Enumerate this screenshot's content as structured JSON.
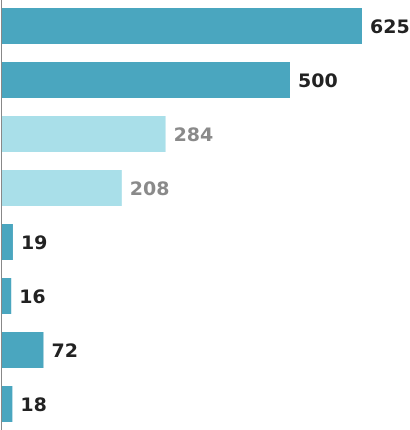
{
  "chart_data": {
    "type": "bar",
    "orientation": "horizontal",
    "title": "",
    "xlabel": "",
    "ylabel": "",
    "xlim": [
      0,
      625
    ],
    "grid": false,
    "legend": "none",
    "bars": [
      {
        "value": 625,
        "label": "625",
        "color": "#4aa6bf",
        "label_color": "#222222"
      },
      {
        "value": 500,
        "label": "500",
        "color": "#4aa6bf",
        "label_color": "#222222"
      },
      {
        "value": 284,
        "label": "284",
        "color": "#a9dfe9",
        "label_color": "#8a8a8a"
      },
      {
        "value": 208,
        "label": "208",
        "color": "#a9dfe9",
        "label_color": "#8a8a8a"
      },
      {
        "value": 19,
        "label": "19",
        "color": "#4aa6bf",
        "label_color": "#222222"
      },
      {
        "value": 16,
        "label": "16",
        "color": "#4aa6bf",
        "label_color": "#222222"
      },
      {
        "value": 72,
        "label": "72",
        "color": "#4aa6bf",
        "label_color": "#222222"
      },
      {
        "value": 18,
        "label": "18",
        "color": "#4aa6bf",
        "label_color": "#222222"
      }
    ],
    "axis_color": "#888888"
  }
}
